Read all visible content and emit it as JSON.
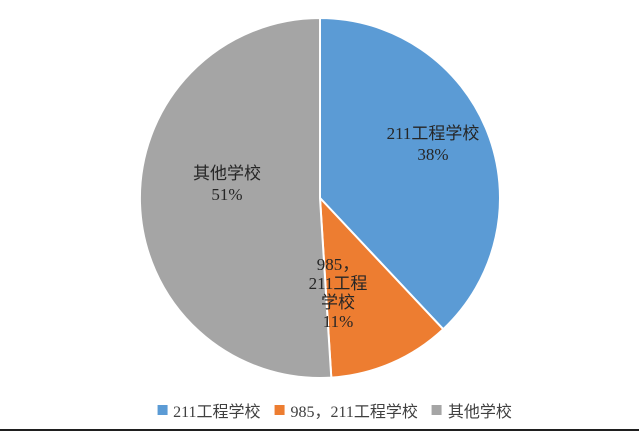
{
  "chart_data": {
    "type": "pie",
    "title": "",
    "categories": [
      "211工程学校",
      "985，211工程学校",
      "其他学校"
    ],
    "values": [
      38,
      11,
      51
    ],
    "unit": "percent",
    "colors": [
      "#5B9BD5",
      "#ED7D31",
      "#A5A5A5"
    ],
    "start_angle_deg": 0,
    "direction": "clockwise",
    "legend_position": "bottom",
    "slice_separator_color": "#FFFFFF",
    "data_labels": [
      {
        "lines": [
          "211工程学校",
          "38%"
        ]
      },
      {
        "lines": [
          "985，",
          "211工程",
          "学校",
          "11%"
        ]
      },
      {
        "lines": [
          "其他学校",
          "51%"
        ]
      }
    ]
  },
  "legend": {
    "items": [
      {
        "label": "211工程学校",
        "color": "#5B9BD5"
      },
      {
        "label": "985，211工程学校",
        "color": "#ED7D31"
      },
      {
        "label": "其他学校",
        "color": "#A5A5A5"
      }
    ]
  }
}
